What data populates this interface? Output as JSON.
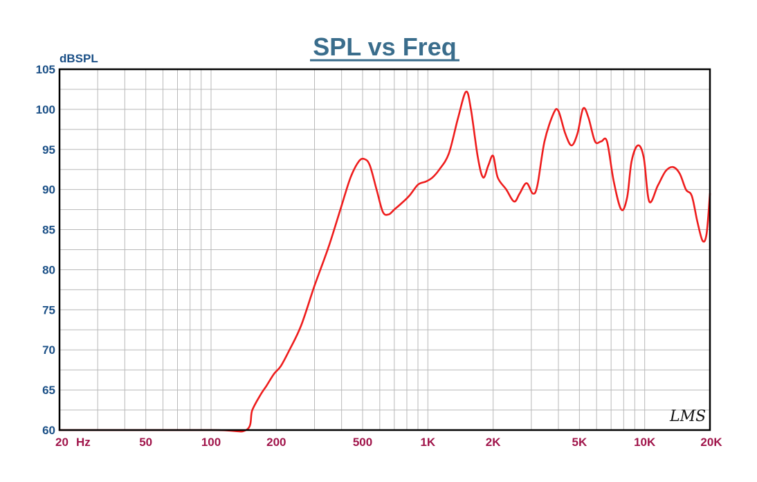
{
  "chart_data": {
    "type": "line",
    "title": "SPL vs Freq",
    "ylabel": "dBSPL",
    "xlabel": "",
    "x_scale": "log",
    "xlim": [
      20,
      20000
    ],
    "ylim": [
      60,
      105
    ],
    "grid": true,
    "y_ticks": [
      60,
      65,
      70,
      75,
      80,
      85,
      90,
      95,
      100,
      105
    ],
    "x_ticks": [
      {
        "value": 20,
        "label": "20"
      },
      {
        "value": 50,
        "label": "50"
      },
      {
        "value": 100,
        "label": "100"
      },
      {
        "value": 200,
        "label": "200"
      },
      {
        "value": 500,
        "label": "500"
      },
      {
        "value": 1000,
        "label": "1K"
      },
      {
        "value": 2000,
        "label": "2K"
      },
      {
        "value": 5000,
        "label": "5K"
      },
      {
        "value": 10000,
        "label": "10K"
      },
      {
        "value": 20000,
        "label": "20K"
      }
    ],
    "x_unit_label": "Hz",
    "watermark": "LMS",
    "series": [
      {
        "color": "#ee1c1c",
        "x": [
          20,
          100,
          145,
          155,
          170,
          180,
          195,
          210,
          230,
          260,
          300,
          350,
          400,
          440,
          480,
          510,
          540,
          580,
          620,
          660,
          700,
          750,
          820,
          900,
          980,
          1050,
          1130,
          1250,
          1380,
          1500,
          1580,
          1700,
          1800,
          1900,
          2000,
          2100,
          2300,
          2500,
          2650,
          2850,
          3050,
          3200,
          3450,
          3800,
          4000,
          4300,
          4600,
          4900,
          5200,
          5500,
          5900,
          6300,
          6700,
          7200,
          7800,
          8300,
          8700,
          9300,
          9900,
          10500,
          11500,
          12500,
          13500,
          14500,
          15500,
          16500,
          17500,
          18500,
          19300,
          20000
        ],
        "y": [
          60,
          60,
          60,
          62.5,
          64.5,
          65.5,
          67,
          68,
          70,
          73,
          78,
          83,
          88,
          91.5,
          93.5,
          93.8,
          93,
          90,
          87.2,
          86.9,
          87.5,
          88.2,
          89.2,
          90.6,
          91,
          91.5,
          92.5,
          94.5,
          99,
          102.2,
          100,
          94,
          91.5,
          93,
          94.2,
          91.5,
          90,
          88.5,
          89.5,
          90.8,
          89.5,
          90.5,
          96,
          99.5,
          99.8,
          97,
          95.5,
          97,
          100.1,
          99,
          96,
          96,
          96,
          91,
          87.5,
          89,
          93.5,
          95.5,
          94,
          88.5,
          90.5,
          92.3,
          92.8,
          92,
          90,
          89.2,
          86,
          83.6,
          84.5,
          89.5
        ]
      }
    ]
  },
  "colors": {
    "title": "#3a6d8c",
    "y_labels": "#1a4f86",
    "x_labels": "#a0144a",
    "grid": "#b8b8b8",
    "frame": "#000000",
    "curve": "#ee1c1c"
  }
}
